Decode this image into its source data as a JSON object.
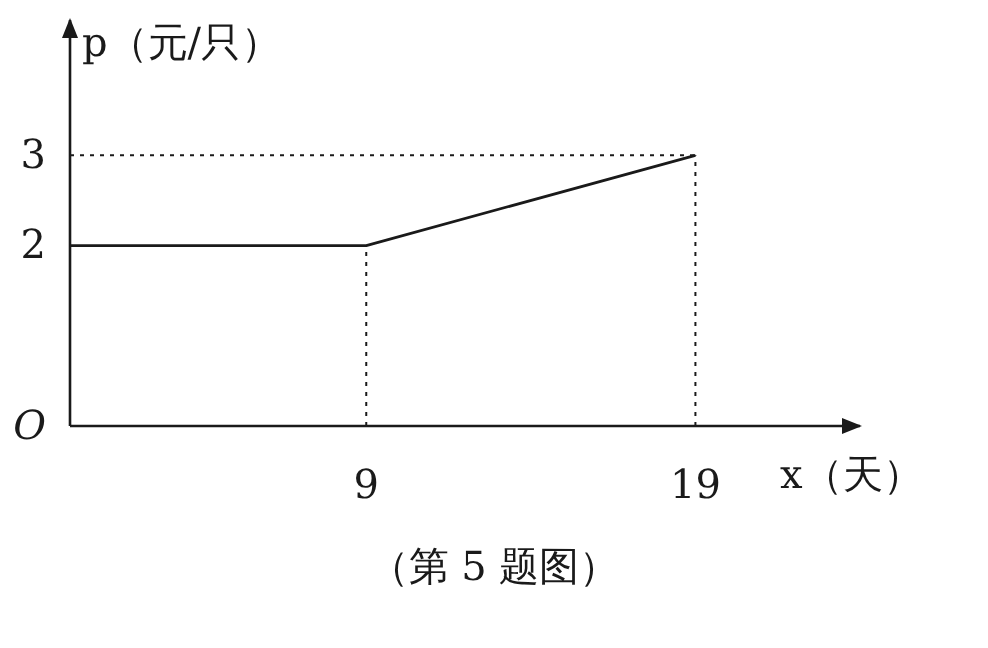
{
  "chart_data": {
    "type": "line",
    "xlabel": "x（天）",
    "ylabel": "p（元/只）",
    "x": [
      0,
      9,
      19
    ],
    "series": [
      {
        "color": "#1a1a1a",
        "values": [
          2,
          2,
          3
        ]
      }
    ],
    "xlim": [
      0,
      24
    ],
    "ylim": [
      0,
      4.5
    ],
    "xticks": [
      9,
      19
    ],
    "yticks": [
      {
        "value": 0,
        "label": "O"
      },
      2,
      3
    ],
    "ref_lines": [
      {
        "axis": "x",
        "value": 9,
        "line_style": "dotted",
        "color": "#1a1a1a"
      },
      {
        "axis": "x",
        "value": 19,
        "line_style": "dotted",
        "color": "#1a1a1a"
      },
      {
        "axis": "y",
        "value": 3,
        "line_style": "dotted",
        "color": "#1a1a1a"
      }
    ],
    "grid": false,
    "marker": "none",
    "line_style": "solid",
    "annotations": [
      "（第 5 题图）"
    ]
  }
}
